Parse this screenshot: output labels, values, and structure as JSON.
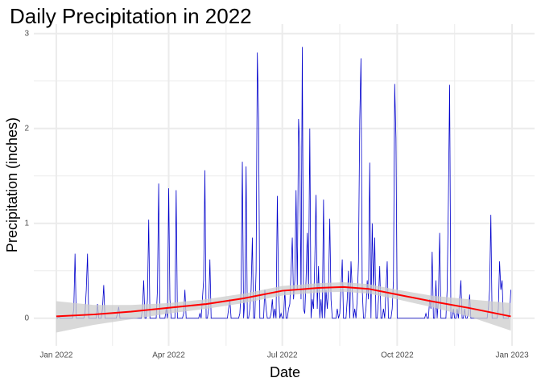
{
  "chart_data": {
    "type": "line",
    "title": "Daily Precipitation in 2022",
    "x_label": "Date",
    "y_label": "Precipitation (inches)",
    "color": "#0000cc",
    "values": [
      0,
      0,
      0.02,
      0,
      0,
      0,
      0,
      0,
      0,
      0,
      0,
      0,
      0,
      0,
      0.1,
      0.68,
      0,
      0,
      0,
      0,
      0,
      0,
      0,
      0.05,
      0.3,
      0.68,
      0,
      0,
      0,
      0,
      0,
      0,
      0,
      0.15,
      0,
      0,
      0,
      0.1,
      0.35,
      0,
      0,
      0,
      0,
      0,
      0,
      0,
      0,
      0,
      0,
      0.05,
      0.12,
      0,
      0,
      0,
      0,
      0,
      0,
      0,
      0,
      0,
      0,
      0,
      0,
      0,
      0,
      0,
      0,
      0,
      0,
      0.1,
      0.4,
      0,
      0,
      0.2,
      1.04,
      0,
      0,
      0,
      0,
      0,
      0,
      0.3,
      1.42,
      0,
      0,
      0,
      0,
      0,
      0.1,
      0,
      1.37,
      0.2,
      0,
      0,
      0,
      0,
      1.35,
      0,
      0,
      0,
      0,
      0,
      0.05,
      0.3,
      0,
      0,
      0,
      0,
      0,
      0,
      0,
      0,
      0,
      0,
      0,
      0.05,
      0,
      0.2,
      0.4,
      1.56,
      0,
      0,
      0.1,
      0.62,
      0,
      0,
      0,
      0,
      0,
      0,
      0,
      0,
      0,
      0,
      0,
      0,
      0,
      0,
      0.1,
      0.2,
      0,
      0,
      0,
      0,
      0,
      0,
      0,
      0.05,
      0.3,
      1.65,
      0,
      0.2,
      1.6,
      0,
      0,
      0.1,
      0.3,
      0.85,
      0,
      0,
      0.5,
      2.8,
      2.1,
      0,
      0,
      0,
      0,
      0.3,
      0.1,
      0,
      0,
      0,
      0.05,
      0.2,
      0,
      0.1,
      0,
      1.29,
      0.3,
      0,
      0.05,
      0,
      0,
      0.3,
      0,
      0,
      0.1,
      0.15,
      0.5,
      0.85,
      0.2,
      0.4,
      1.35,
      0.3,
      2.1,
      1.8,
      0.2,
      2.86,
      0.1,
      0.05,
      0.4,
      0.9,
      0.3,
      2.0,
      0,
      0.2,
      0.1,
      0.6,
      1.3,
      0.1,
      0.55,
      0,
      0.2,
      0,
      1.25,
      0,
      0.3,
      0.1,
      0.3,
      1.05,
      0.2,
      0,
      0,
      0,
      0,
      0.1,
      0,
      0.05,
      0.3,
      0.62,
      0,
      0,
      0,
      0.2,
      0.5,
      0,
      0.6,
      0.3,
      0,
      0.1,
      0,
      0.2,
      0.6,
      2.08,
      2.74,
      0.3,
      0,
      0,
      0.1,
      0.4,
      0.2,
      1.64,
      0,
      1.0,
      0.3,
      0.85,
      0,
      0,
      0.2,
      0.55,
      0,
      0,
      0.1,
      0,
      0.3,
      0.6,
      0,
      0,
      0,
      0.1,
      0.4,
      2.47,
      1.9,
      0,
      0,
      0,
      0,
      0,
      0,
      0,
      0,
      0,
      0,
      0,
      0,
      0,
      0,
      0,
      0,
      0,
      0,
      0,
      0,
      0,
      0,
      0,
      0.05,
      0,
      0,
      0.2,
      0.1,
      0.7,
      0,
      0,
      0.4,
      0,
      0.2,
      0.9,
      0,
      0,
      0,
      0,
      0,
      0.3,
      1.25,
      2.46,
      0,
      0,
      0.1,
      0,
      0,
      0.1,
      0,
      0.2,
      0.4,
      0,
      0,
      0.1,
      0,
      0,
      0.05,
      0.25,
      0,
      0,
      0,
      0,
      0,
      0,
      0,
      0,
      0,
      0,
      0,
      0,
      0,
      0,
      0.1,
      0.3,
      1.09,
      0,
      0,
      0,
      0,
      0,
      0.1,
      0.6,
      0.3,
      0.4,
      0,
      0,
      0,
      0,
      0,
      0.05,
      0.3
    ],
    "trend": {
      "color": "#ff0000",
      "band_color": "#cccccc",
      "x": [
        0,
        30,
        60,
        90,
        120,
        150,
        181,
        210,
        230,
        250,
        273,
        300,
        330,
        364
      ],
      "values": [
        0.02,
        0.04,
        0.07,
        0.11,
        0.15,
        0.21,
        0.29,
        0.32,
        0.33,
        0.31,
        0.25,
        0.18,
        0.11,
        0.02
      ],
      "lower": [
        -0.15,
        -0.07,
        -0.01,
        0.05,
        0.1,
        0.16,
        0.24,
        0.27,
        0.28,
        0.26,
        0.2,
        0.12,
        0.02,
        -0.13
      ],
      "upper": [
        0.18,
        0.14,
        0.14,
        0.16,
        0.2,
        0.26,
        0.34,
        0.37,
        0.38,
        0.36,
        0.3,
        0.24,
        0.2,
        0.16
      ]
    },
    "xlim": [
      -18,
      383
    ],
    "ylim": [
      -0.29,
      3.1
    ],
    "xticks": [
      {
        "value": 0,
        "label": "Jan 2022"
      },
      {
        "value": 90,
        "label": "Apr 2022"
      },
      {
        "value": 181,
        "label": "Jul 2022"
      },
      {
        "value": 273,
        "label": "Oct 2022"
      },
      {
        "value": 365,
        "label": "Jan 2023"
      }
    ],
    "yticks": [
      0,
      1,
      2,
      3
    ],
    "xminor": [
      45,
      136,
      227,
      319
    ],
    "yminor": [
      0.5,
      1.5,
      2.5
    ],
    "grid": true
  }
}
